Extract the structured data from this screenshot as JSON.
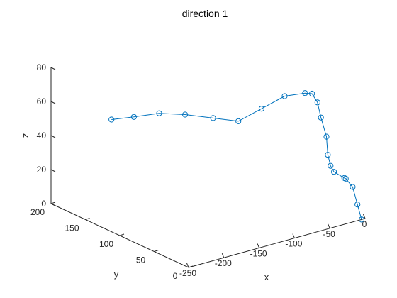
{
  "chart_data": {
    "type": "line",
    "title": "direction 1",
    "xlabel": "x",
    "ylabel": "y",
    "zlabel": "z",
    "x_ticks": [
      "-250",
      "-200",
      "-150",
      "-100",
      "-50",
      "0"
    ],
    "y_ticks": [
      "0",
      "50",
      "100",
      "150",
      "200"
    ],
    "z_ticks": [
      "0",
      "20",
      "40",
      "60",
      "80"
    ],
    "xlim": [
      -250,
      0
    ],
    "ylim": [
      0,
      200
    ],
    "zlim": [
      0,
      80
    ],
    "grid": false,
    "marker": "circle",
    "colors": {
      "series": "#0072BD",
      "axis": "#262626"
    },
    "series": [
      {
        "points": [
          {
            "x": -5,
            "y": 0,
            "z": 0
          },
          {
            "x": -6,
            "y": 5,
            "z": 8
          },
          {
            "x": -6,
            "y": 12,
            "z": 17
          },
          {
            "x": -6,
            "y": 22,
            "z": 20
          },
          {
            "x": -6,
            "y": 24,
            "z": 20
          },
          {
            "x": -10,
            "y": 35,
            "z": 22
          },
          {
            "x": -8,
            "y": 42,
            "z": 24
          },
          {
            "x": -9,
            "y": 45,
            "z": 30
          },
          {
            "x": -8,
            "y": 48,
            "z": 40
          },
          {
            "x": -9,
            "y": 55,
            "z": 50
          },
          {
            "x": -9,
            "y": 60,
            "z": 58
          },
          {
            "x": -7,
            "y": 70,
            "z": 61
          },
          {
            "x": -12,
            "y": 75,
            "z": 61
          },
          {
            "x": -36,
            "y": 80,
            "z": 61
          },
          {
            "x": -61,
            "y": 88,
            "z": 55
          },
          {
            "x": -86,
            "y": 96,
            "z": 49
          },
          {
            "x": -112,
            "y": 106,
            "z": 52
          },
          {
            "x": -140,
            "y": 118,
            "z": 55
          },
          {
            "x": -167,
            "y": 128,
            "z": 57
          },
          {
            "x": -193,
            "y": 138,
            "z": 56
          },
          {
            "x": -218,
            "y": 145,
            "z": 56
          }
        ]
      }
    ]
  }
}
